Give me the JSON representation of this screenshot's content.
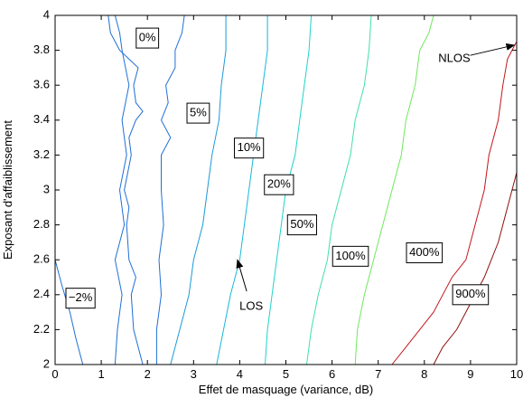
{
  "chart_data": {
    "type": "line",
    "xlabel": "Effet de masquage (variance, dB)",
    "ylabel": "Exposant d'affaiblissement",
    "xlim": [
      0,
      10
    ],
    "ylim": [
      2,
      4
    ],
    "xticks": [
      "0",
      "1",
      "2",
      "3",
      "4",
      "5",
      "6",
      "7",
      "8",
      "9",
      "10"
    ],
    "yticks": [
      "2",
      "2.2",
      "2.4",
      "2.6",
      "2.8",
      "3",
      "3.2",
      "3.4",
      "3.6",
      "3.8",
      "4"
    ],
    "grid": false,
    "series": [
      {
        "color": "#1f6fd6",
        "points": [
          [
            0.0,
            2.6
          ],
          [
            0.15,
            2.45
          ],
          [
            0.32,
            2.3
          ],
          [
            0.45,
            2.15
          ],
          [
            0.6,
            2.0
          ]
        ]
      },
      {
        "color": "#1f6fd6",
        "points": [
          [
            1.3,
            2.0
          ],
          [
            1.35,
            2.2
          ],
          [
            1.45,
            2.4
          ],
          [
            1.3,
            2.6
          ],
          [
            1.5,
            2.8
          ],
          [
            1.4,
            3.0
          ],
          [
            1.55,
            3.2
          ],
          [
            1.45,
            3.4
          ],
          [
            1.6,
            3.6
          ],
          [
            1.45,
            3.8
          ],
          [
            1.4,
            3.9
          ],
          [
            1.3,
            4.0
          ]
        ]
      },
      {
        "color": "#1f6fd6",
        "points": [
          [
            1.15,
            4.0
          ],
          [
            1.2,
            3.9
          ],
          [
            1.3,
            3.85
          ],
          [
            1.4,
            3.8
          ],
          [
            1.6,
            3.75
          ],
          [
            1.8,
            3.7
          ],
          [
            1.7,
            3.6
          ],
          [
            1.75,
            3.5
          ],
          [
            1.9,
            3.45
          ],
          [
            1.75,
            3.4
          ],
          [
            1.6,
            3.3
          ],
          [
            1.65,
            3.2
          ],
          [
            1.5,
            3.0
          ],
          [
            1.6,
            2.9
          ],
          [
            1.55,
            2.8
          ],
          [
            1.6,
            2.6
          ],
          [
            1.75,
            2.5
          ],
          [
            1.65,
            2.4
          ],
          [
            1.7,
            2.2
          ],
          [
            1.8,
            2.1
          ],
          [
            1.9,
            2.0
          ]
        ]
      },
      {
        "color": "#1f6fd6",
        "points": [
          [
            2.8,
            4.0
          ],
          [
            2.75,
            3.9
          ],
          [
            2.6,
            3.8
          ],
          [
            2.6,
            3.7
          ],
          [
            2.4,
            3.6
          ],
          [
            2.45,
            3.5
          ],
          [
            2.3,
            3.4
          ],
          [
            2.5,
            3.3
          ],
          [
            2.3,
            3.2
          ],
          [
            2.3,
            3.0
          ],
          [
            2.35,
            2.8
          ],
          [
            2.25,
            2.6
          ],
          [
            2.3,
            2.4
          ],
          [
            2.2,
            2.2
          ],
          [
            2.2,
            2.0
          ]
        ]
      },
      {
        "color": "#1a9bd8",
        "points": [
          [
            3.7,
            4.0
          ],
          [
            3.7,
            3.8
          ],
          [
            3.6,
            3.6
          ],
          [
            3.55,
            3.4
          ],
          [
            3.4,
            3.2
          ],
          [
            3.3,
            3.0
          ],
          [
            3.2,
            2.8
          ],
          [
            3.0,
            2.6
          ],
          [
            2.9,
            2.4
          ],
          [
            2.7,
            2.2
          ],
          [
            2.5,
            2.0
          ]
        ]
      },
      {
        "color": "#19b8d8",
        "points": [
          [
            4.6,
            4.0
          ],
          [
            4.6,
            3.8
          ],
          [
            4.5,
            3.6
          ],
          [
            4.4,
            3.4
          ],
          [
            4.3,
            3.2
          ],
          [
            4.2,
            3.0
          ],
          [
            4.1,
            2.8
          ],
          [
            4.0,
            2.6
          ],
          [
            3.8,
            2.4
          ],
          [
            3.65,
            2.2
          ],
          [
            3.5,
            2.0
          ]
        ]
      },
      {
        "color": "#1fd2c8",
        "points": [
          [
            5.55,
            4.0
          ],
          [
            5.5,
            3.8
          ],
          [
            5.4,
            3.6
          ],
          [
            5.3,
            3.4
          ],
          [
            5.2,
            3.2
          ],
          [
            5.0,
            3.0
          ],
          [
            4.9,
            2.8
          ],
          [
            4.8,
            2.6
          ],
          [
            4.7,
            2.4
          ],
          [
            4.6,
            2.2
          ],
          [
            4.55,
            2.0
          ]
        ]
      },
      {
        "color": "#3fe0a6",
        "points": [
          [
            6.85,
            4.0
          ],
          [
            6.8,
            3.8
          ],
          [
            6.7,
            3.6
          ],
          [
            6.5,
            3.4
          ],
          [
            6.4,
            3.2
          ],
          [
            6.2,
            3.0
          ],
          [
            6.0,
            2.8
          ],
          [
            5.9,
            2.6
          ],
          [
            5.7,
            2.4
          ],
          [
            5.55,
            2.2
          ],
          [
            5.45,
            2.0
          ]
        ]
      },
      {
        "color": "#6ee85c",
        "points": [
          [
            8.2,
            4.0
          ],
          [
            8.1,
            3.9
          ],
          [
            7.9,
            3.8
          ],
          [
            7.8,
            3.6
          ],
          [
            7.6,
            3.4
          ],
          [
            7.5,
            3.2
          ],
          [
            7.3,
            3.0
          ],
          [
            7.1,
            2.8
          ],
          [
            6.9,
            2.6
          ],
          [
            6.7,
            2.4
          ],
          [
            6.55,
            2.2
          ],
          [
            6.5,
            2.0
          ]
        ]
      },
      {
        "color": "#c4161c",
        "points": [
          [
            10.0,
            3.85
          ],
          [
            9.8,
            3.75
          ],
          [
            9.7,
            3.6
          ],
          [
            9.6,
            3.4
          ],
          [
            9.4,
            3.2
          ],
          [
            9.3,
            3.0
          ],
          [
            9.1,
            2.8
          ],
          [
            8.9,
            2.6
          ],
          [
            8.6,
            2.5
          ],
          [
            8.4,
            2.4
          ],
          [
            8.2,
            2.3
          ],
          [
            7.9,
            2.2
          ],
          [
            7.6,
            2.1
          ],
          [
            7.3,
            2.0
          ]
        ]
      },
      {
        "color": "#8c1010",
        "points": [
          [
            10.0,
            3.1
          ],
          [
            9.8,
            2.9
          ],
          [
            9.6,
            2.7
          ],
          [
            9.3,
            2.5
          ],
          [
            9.0,
            2.35
          ],
          [
            8.7,
            2.2
          ],
          [
            8.4,
            2.1
          ],
          [
            8.2,
            2.0
          ]
        ]
      }
    ],
    "contour_labels": [
      {
        "text": "−2%",
        "x": 0.55,
        "y": 2.38
      },
      {
        "text": "0%",
        "x": 2.0,
        "y": 3.87
      },
      {
        "text": "5%",
        "x": 3.1,
        "y": 3.44
      },
      {
        "text": "10%",
        "x": 4.2,
        "y": 3.24
      },
      {
        "text": "20%",
        "x": 4.85,
        "y": 3.03
      },
      {
        "text": "50%",
        "x": 5.35,
        "y": 2.8
      },
      {
        "text": "100%",
        "x": 6.4,
        "y": 2.62
      },
      {
        "text": "400%",
        "x": 8.0,
        "y": 2.64
      },
      {
        "text": "900%",
        "x": 9.0,
        "y": 2.4
      }
    ],
    "annotations": [
      {
        "text": "NLOS",
        "x": 8.65,
        "y": 3.75,
        "arrow_to": [
          9.95,
          3.83
        ]
      },
      {
        "text": "LOS",
        "x": 4.25,
        "y": 2.33,
        "arrow_to": [
          3.95,
          2.6
        ]
      }
    ]
  }
}
